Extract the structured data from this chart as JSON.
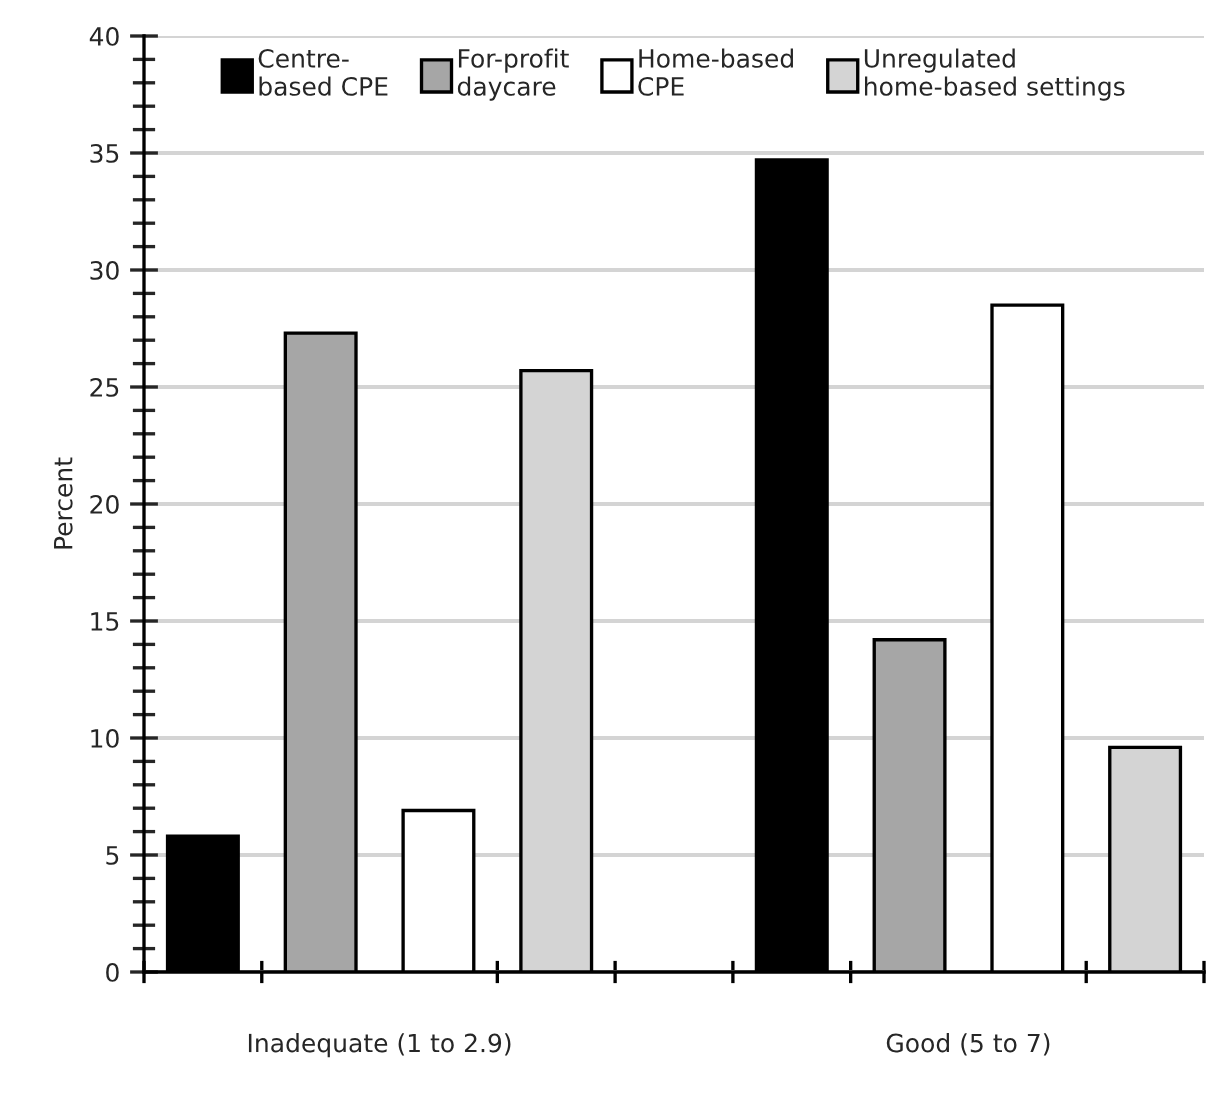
{
  "chart_data": {
    "type": "bar",
    "ylabel": "Percent",
    "categories": [
      "Inadequate (1 to 2.9)",
      "Good (5 to 7)"
    ],
    "series": [
      {
        "name": "Centre-\nbased CPE",
        "color": "#000000",
        "values": [
          5.8,
          34.7
        ]
      },
      {
        "name": "For-profit\ndaycare",
        "color": "#a6a6a6",
        "values": [
          27.3,
          14.2
        ]
      },
      {
        "name": "Home-based\nCPE",
        "color": "#ffffff",
        "values": [
          6.9,
          28.5
        ]
      },
      {
        "name": "Unregulated\nhome-based settings",
        "color": "#d4d4d4",
        "values": [
          25.7,
          9.6
        ]
      }
    ],
    "ylim": [
      0,
      40
    ],
    "yticks": [
      0,
      5,
      10,
      15,
      20,
      25,
      30,
      35,
      40
    ],
    "grid": "y",
    "legend": "top"
  }
}
